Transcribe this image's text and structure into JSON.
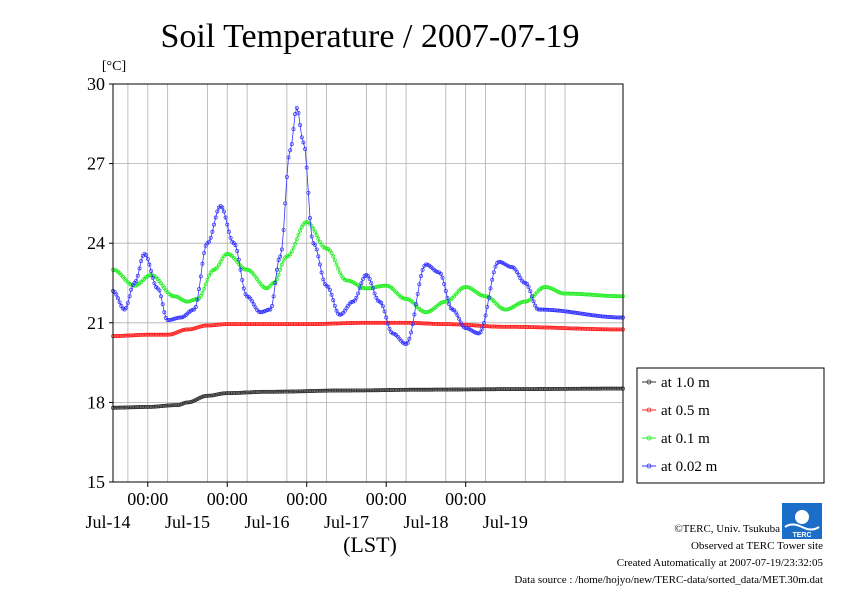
{
  "chart_data": {
    "type": "line",
    "title": "Soil Temperature / 2007-07-19",
    "ylabel": "[°C]",
    "xlabel": "(LST)",
    "ylim": [
      15,
      30
    ],
    "yticks": [
      15,
      18,
      21,
      24,
      27,
      30
    ],
    "ytick_labels": [
      "15",
      "18",
      "21",
      "24",
      "27",
      "30"
    ],
    "xlim": [
      "2007-07-13 13:30",
      "2007-07-19 23:30"
    ],
    "x_time_ticks": [
      {
        "t": "2007-07-14 00:00",
        "label": "00:00"
      },
      {
        "t": "2007-07-15 00:00",
        "label": "00:00"
      },
      {
        "t": "2007-07-16 00:00",
        "label": "00:00"
      },
      {
        "t": "2007-07-17 00:00",
        "label": "00:00"
      },
      {
        "t": "2007-07-18 00:00",
        "label": "00:00"
      }
    ],
    "x_date_labels": [
      {
        "t": "2007-07-13 12:00",
        "label": "Jul-14"
      },
      {
        "t": "2007-07-14 12:00",
        "label": "Jul-15"
      },
      {
        "t": "2007-07-15 12:00",
        "label": "Jul-16"
      },
      {
        "t": "2007-07-16 12:00",
        "label": "Jul-17"
      },
      {
        "t": "2007-07-17 12:00",
        "label": "Jul-18"
      },
      {
        "t": "2007-07-18 12:00",
        "label": "Jul-19"
      }
    ],
    "x_grid_times": [
      "2007-07-13 18:00",
      "2007-07-14 00:00",
      "2007-07-14 06:00",
      "2007-07-14 18:00",
      "2007-07-15 00:00",
      "2007-07-15 06:00",
      "2007-07-15 18:00",
      "2007-07-16 00:00",
      "2007-07-16 06:00",
      "2007-07-16 18:00",
      "2007-07-17 00:00",
      "2007-07-17 06:00",
      "2007-07-17 18:00",
      "2007-07-18 00:00",
      "2007-07-18 06:00",
      "2007-07-18 18:00",
      "2007-07-19 00:00",
      "2007-07-19 06:00"
    ],
    "grid": true,
    "legend_position": "bottom-right outside",
    "series": [
      {
        "name": "at 1.0 m",
        "color": "#333333",
        "points": [
          [
            "2007-07-13 13:30",
            17.8
          ],
          [
            "2007-07-14 00:00",
            17.83
          ],
          [
            "2007-07-14 09:00",
            17.9
          ],
          [
            "2007-07-14 12:00",
            18.0
          ],
          [
            "2007-07-14 18:00",
            18.25
          ],
          [
            "2007-07-15 00:00",
            18.35
          ],
          [
            "2007-07-15 12:00",
            18.4
          ],
          [
            "2007-07-16 12:00",
            18.45
          ],
          [
            "2007-07-17 12:00",
            18.48
          ],
          [
            "2007-07-18 12:00",
            18.5
          ],
          [
            "2007-07-19 23:30",
            18.52
          ]
        ]
      },
      {
        "name": "at 0.5 m",
        "color": "#ff2020",
        "points": [
          [
            "2007-07-13 13:30",
            20.5
          ],
          [
            "2007-07-14 00:00",
            20.55
          ],
          [
            "2007-07-14 06:00",
            20.55
          ],
          [
            "2007-07-14 12:00",
            20.75
          ],
          [
            "2007-07-14 18:00",
            20.9
          ],
          [
            "2007-07-15 00:00",
            20.95
          ],
          [
            "2007-07-16 00:00",
            20.95
          ],
          [
            "2007-07-16 18:00",
            21.0
          ],
          [
            "2007-07-17 06:00",
            21.0
          ],
          [
            "2007-07-17 18:00",
            20.95
          ],
          [
            "2007-07-18 12:00",
            20.85
          ],
          [
            "2007-07-19 23:30",
            20.75
          ]
        ]
      },
      {
        "name": "at 0.1 m",
        "color": "#22ee22",
        "points": [
          [
            "2007-07-13 13:30",
            23.0
          ],
          [
            "2007-07-13 20:00",
            22.4
          ],
          [
            "2007-07-14 01:00",
            22.8
          ],
          [
            "2007-07-14 08:00",
            22.0
          ],
          [
            "2007-07-14 12:00",
            21.8
          ],
          [
            "2007-07-14 15:00",
            21.9
          ],
          [
            "2007-07-14 20:00",
            23.0
          ],
          [
            "2007-07-15 00:00",
            23.6
          ],
          [
            "2007-07-15 06:00",
            23.0
          ],
          [
            "2007-07-15 12:00",
            22.3
          ],
          [
            "2007-07-15 14:00",
            22.5
          ],
          [
            "2007-07-15 18:00",
            23.5
          ],
          [
            "2007-07-16 00:00",
            24.8
          ],
          [
            "2007-07-16 06:00",
            23.8
          ],
          [
            "2007-07-16 12:00",
            22.6
          ],
          [
            "2007-07-16 18:00",
            22.3
          ],
          [
            "2007-07-17 00:00",
            22.4
          ],
          [
            "2007-07-17 06:00",
            21.9
          ],
          [
            "2007-07-17 12:00",
            21.4
          ],
          [
            "2007-07-17 18:00",
            21.8
          ],
          [
            "2007-07-18 00:00",
            22.35
          ],
          [
            "2007-07-18 06:00",
            22.0
          ],
          [
            "2007-07-18 12:00",
            21.5
          ],
          [
            "2007-07-18 18:00",
            21.8
          ],
          [
            "2007-07-19 00:00",
            22.35
          ],
          [
            "2007-07-19 06:00",
            22.1
          ],
          [
            "2007-07-19 23:30",
            22.0
          ]
        ]
      },
      {
        "name": "at 0.02 m",
        "color": "#3333ff",
        "points": [
          [
            "2007-07-13 13:30",
            22.2
          ],
          [
            "2007-07-13 17:00",
            21.5
          ],
          [
            "2007-07-13 20:00",
            22.5
          ],
          [
            "2007-07-13 23:00",
            23.6
          ],
          [
            "2007-07-14 03:00",
            22.3
          ],
          [
            "2007-07-14 06:00",
            21.1
          ],
          [
            "2007-07-14 10:00",
            21.2
          ],
          [
            "2007-07-14 14:00",
            21.5
          ],
          [
            "2007-07-14 18:00",
            24.0
          ],
          [
            "2007-07-14 22:00",
            25.4
          ],
          [
            "2007-07-15 02:00",
            24.0
          ],
          [
            "2007-07-15 06:00",
            22.0
          ],
          [
            "2007-07-15 10:00",
            21.4
          ],
          [
            "2007-07-15 13:00",
            21.5
          ],
          [
            "2007-07-15 16:00",
            23.5
          ],
          [
            "2007-07-15 19:00",
            27.5
          ],
          [
            "2007-07-15 21:00",
            29.1
          ],
          [
            "2007-07-15 23:00",
            27.8
          ],
          [
            "2007-07-16 02:00",
            24.0
          ],
          [
            "2007-07-16 06:00",
            22.4
          ],
          [
            "2007-07-16 10:00",
            21.3
          ],
          [
            "2007-07-16 14:00",
            21.8
          ],
          [
            "2007-07-16 18:00",
            22.8
          ],
          [
            "2007-07-16 22:00",
            21.8
          ],
          [
            "2007-07-17 02:00",
            20.6
          ],
          [
            "2007-07-17 06:00",
            20.2
          ],
          [
            "2007-07-17 12:00",
            23.2
          ],
          [
            "2007-07-17 16:00",
            22.9
          ],
          [
            "2007-07-17 20:00",
            21.5
          ],
          [
            "2007-07-18 00:00",
            20.8
          ],
          [
            "2007-07-18 04:00",
            20.6
          ],
          [
            "2007-07-18 10:00",
            23.3
          ],
          [
            "2007-07-18 14:00",
            23.1
          ],
          [
            "2007-07-18 18:00",
            22.5
          ],
          [
            "2007-07-18 22:00",
            21.5
          ],
          [
            "2007-07-19 23:30",
            21.2
          ]
        ]
      }
    ]
  },
  "credits": {
    "copyright": "©TERC, Univ. Tsukuba",
    "observed": "Observed at TERC Tower site",
    "created": "Created Automatically at 2007-07-19/23:32:05",
    "source": "Data source : /home/hojyo/new/TERC-data/sorted_data/MET.30m.dat",
    "logo_text": "TERC"
  },
  "colors": {
    "plot_background": "#ffffff",
    "grid": "#b0b0b0",
    "axis": "#000000",
    "logo": "#1a6ec8"
  }
}
